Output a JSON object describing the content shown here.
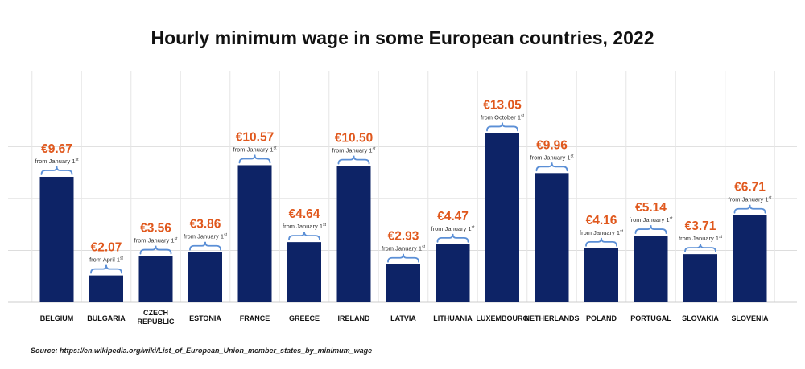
{
  "title": "Hourly minimum wage in some European countries, 2022",
  "source": "Source: https://en.wikipedia.org/wiki/List_of_European_Union_member_states_by_minimum_wage",
  "chart_data": {
    "type": "bar",
    "title": "Hourly minimum wage in some European countries, 2022",
    "xlabel": "",
    "ylabel": "",
    "ylim": [
      0,
      15
    ],
    "grid": true,
    "colors": {
      "bar": "#0d2366",
      "value_label": "#e0581d",
      "brace": "#5b8fd6",
      "grid": "#dddddd"
    },
    "categories": [
      "BELGIUM",
      "BULGARIA",
      "CZECH REPUBLIC",
      "ESTONIA",
      "FRANCE",
      "GREECE",
      "IRELAND",
      "LATVIA",
      "LITHUANIA",
      "LUXEMBOURG",
      "NETHERLANDS",
      "POLAND",
      "PORTUGAL",
      "SLOVAKIA",
      "SLOVENIA"
    ],
    "category_lines": [
      [
        "BELGIUM"
      ],
      [
        "BULGARIA"
      ],
      [
        "CZECH",
        "REPUBLIC"
      ],
      [
        "ESTONIA"
      ],
      [
        "FRANCE"
      ],
      [
        "GREECE"
      ],
      [
        "IRELAND"
      ],
      [
        "LATVIA"
      ],
      [
        "LITHUANIA"
      ],
      [
        "LUXEMBOURG"
      ],
      [
        "NETHERLANDS"
      ],
      [
        "POLAND"
      ],
      [
        "PORTUGAL"
      ],
      [
        "SLOVAKIA"
      ],
      [
        "SLOVENIA"
      ]
    ],
    "values": [
      9.67,
      2.07,
      3.56,
      3.86,
      10.57,
      4.64,
      10.5,
      2.93,
      4.47,
      13.05,
      9.96,
      4.16,
      5.14,
      3.71,
      6.71
    ],
    "value_labels": [
      "€9.67",
      "€2.07",
      "€3.56",
      "€3.86",
      "€10.57",
      "€4.64",
      "€10.50",
      "€2.93",
      "€4.47",
      "€13.05",
      "€9.96",
      "€4.16",
      "€5.14",
      "€3.71",
      "€6.71"
    ],
    "annotations": [
      [
        "from January 1",
        "st"
      ],
      [
        "from April 1",
        "st"
      ],
      [
        "from January 1",
        "st"
      ],
      [
        "from January 1",
        "st"
      ],
      [
        "from January 1",
        "st"
      ],
      [
        "from January 1",
        "st"
      ],
      [
        "from January 1",
        "st"
      ],
      [
        "from January 1",
        "st"
      ],
      [
        "from January 1",
        "st"
      ],
      [
        "from October 1",
        "st"
      ],
      [
        "from January 1",
        "st"
      ],
      [
        "from January 1",
        "st"
      ],
      [
        "from January 1",
        "st"
      ],
      [
        "from January 1",
        "st"
      ],
      [
        "from January 1",
        "st"
      ]
    ]
  }
}
